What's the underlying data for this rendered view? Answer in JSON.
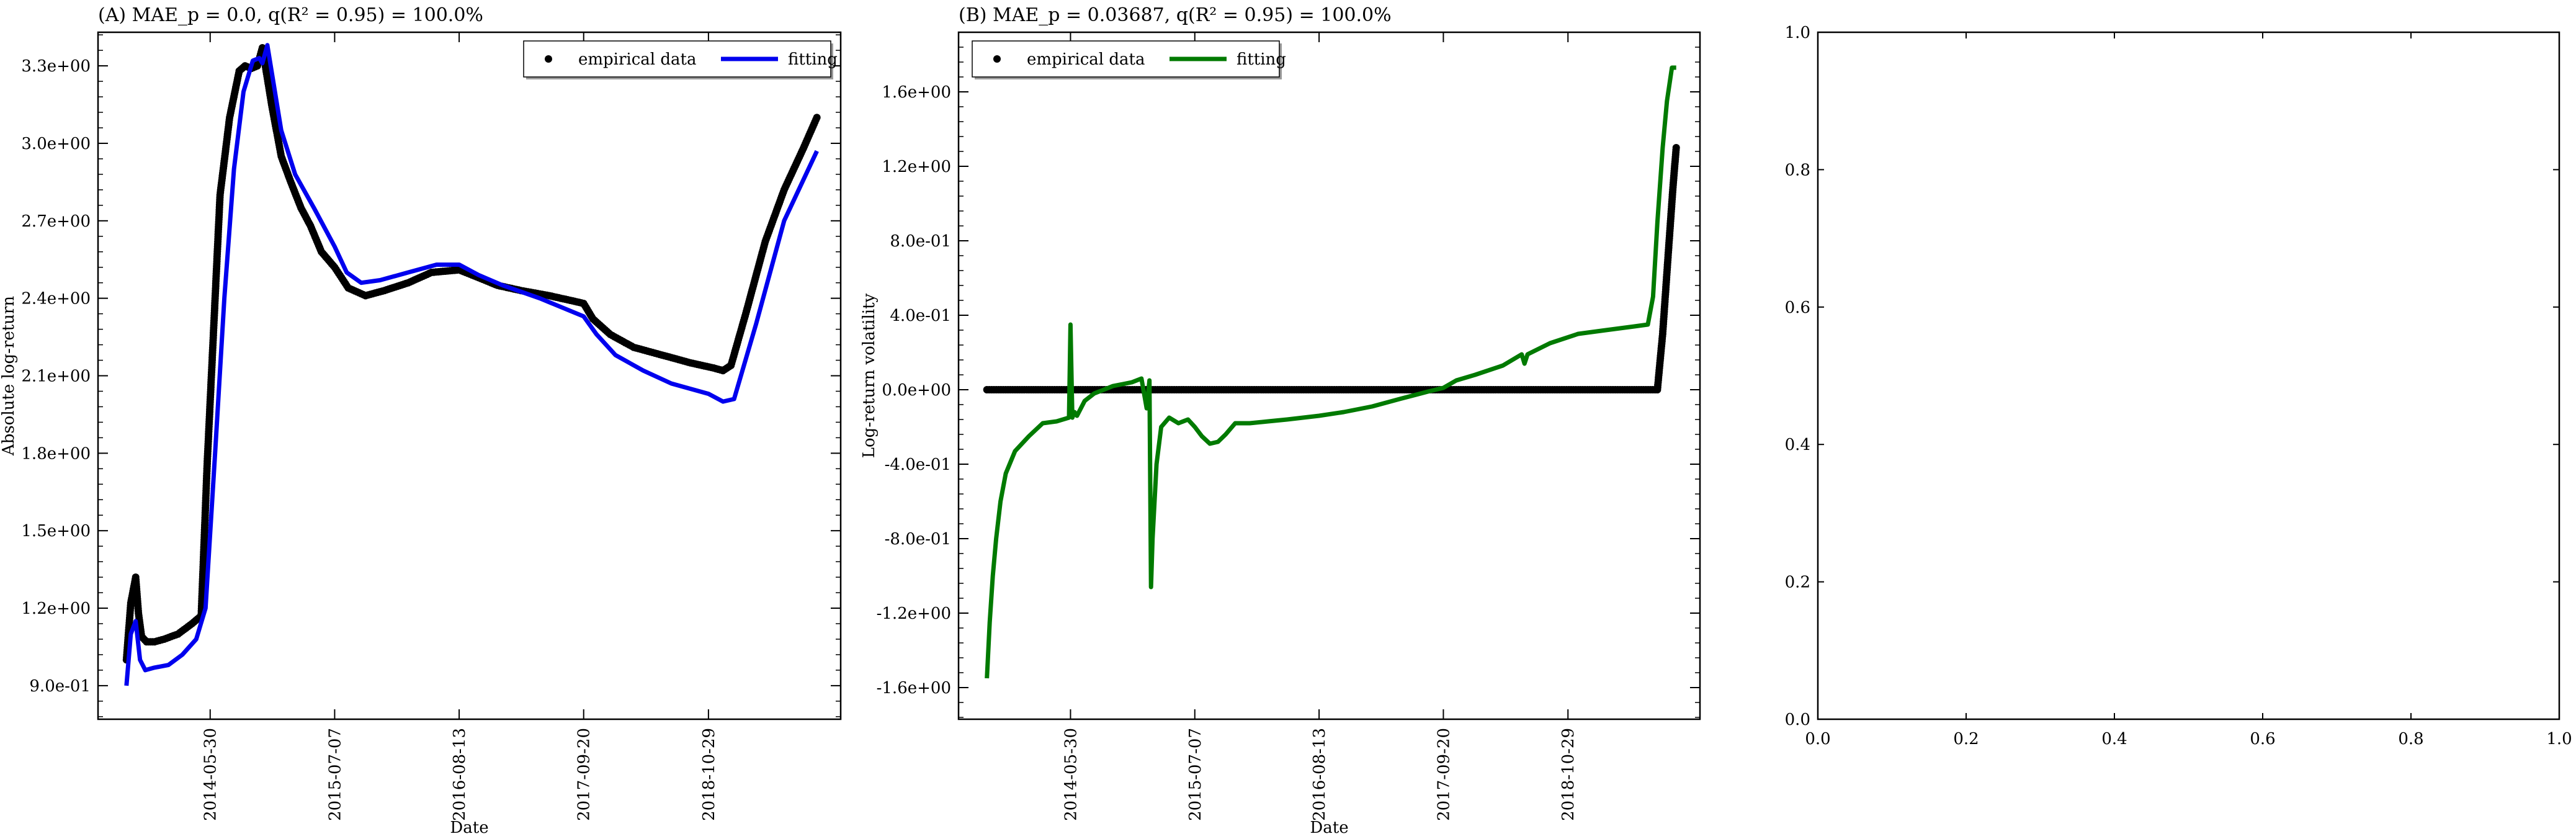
{
  "chart_data": [
    {
      "type": "line",
      "title": "(A) MAE_p = 0.0, q(R² = 0.95) = 100.0%",
      "xlabel": "Date",
      "ylabel": "Absolute log-return",
      "x_tick_labels": [
        "2014-05-30",
        "2015-07-07",
        "2016-08-13",
        "2017-09-20",
        "2018-10-29"
      ],
      "x_ticks": [
        "2014-05-30",
        "2015-07-07",
        "2016-08-13",
        "2017-09-20",
        "2018-10-29"
      ],
      "xlim": [
        "2013-06-01",
        "2019-12-31"
      ],
      "y_tick_labels": [
        "9.0e-01",
        "1.2e+00",
        "1.5e+00",
        "1.8e+00",
        "2.1e+00",
        "2.4e+00",
        "2.7e+00",
        "3.0e+00",
        "3.3e+00"
      ],
      "y_ticks": [
        0.9,
        1.2,
        1.5,
        1.8,
        2.1,
        2.4,
        2.7,
        3.0,
        3.3
      ],
      "ylim": [
        0.77,
        3.43
      ],
      "legend": "top-right",
      "series": [
        {
          "name": "empirical data",
          "style": "points",
          "color": "#000000",
          "x": [
            "2013-09-01",
            "2013-09-15",
            "2013-10-01",
            "2013-10-10",
            "2013-10-20",
            "2013-11-05",
            "2013-12-01",
            "2014-01-01",
            "2014-02-15",
            "2014-04-01",
            "2014-05-01",
            "2014-05-20",
            "2014-06-15",
            "2014-07-01",
            "2014-08-01",
            "2014-09-01",
            "2014-09-20",
            "2014-10-10",
            "2014-10-30",
            "2014-11-15",
            "2014-12-15",
            "2015-01-15",
            "2015-02-15",
            "2015-03-20",
            "2015-04-20",
            "2015-05-25",
            "2015-07-07",
            "2015-08-20",
            "2015-10-15",
            "2015-12-15",
            "2016-03-01",
            "2016-05-15",
            "2016-08-13",
            "2016-10-15",
            "2016-12-15",
            "2017-03-01",
            "2017-06-01",
            "2017-08-15",
            "2017-09-20",
            "2017-10-20",
            "2017-12-15",
            "2018-03-01",
            "2018-06-01",
            "2018-09-01",
            "2018-11-15",
            "2018-12-15",
            "2019-01-10",
            "2019-03-01",
            "2019-05-01",
            "2019-07-01",
            "2019-09-01",
            "2019-10-15"
          ],
          "y": [
            1.0,
            1.22,
            1.32,
            1.18,
            1.09,
            1.07,
            1.07,
            1.08,
            1.1,
            1.14,
            1.17,
            1.75,
            2.4,
            2.8,
            3.1,
            3.28,
            3.3,
            3.29,
            3.3,
            3.37,
            3.15,
            2.95,
            2.85,
            2.75,
            2.68,
            2.58,
            2.52,
            2.44,
            2.41,
            2.43,
            2.46,
            2.5,
            2.51,
            2.48,
            2.45,
            2.43,
            2.41,
            2.39,
            2.38,
            2.32,
            2.26,
            2.21,
            2.18,
            2.15,
            2.13,
            2.12,
            2.14,
            2.35,
            2.62,
            2.82,
            2.98,
            3.1
          ]
        },
        {
          "name": "fitting",
          "style": "line",
          "color": "#0000ee",
          "x": [
            "2013-09-01",
            "2013-09-15",
            "2013-10-01",
            "2013-10-15",
            "2013-11-01",
            "2013-12-01",
            "2014-01-15",
            "2014-03-01",
            "2014-04-15",
            "2014-05-15",
            "2014-06-15",
            "2014-07-15",
            "2014-08-15",
            "2014-09-15",
            "2014-10-15",
            "2014-11-05",
            "2014-11-15",
            "2014-12-01",
            "2015-01-15",
            "2015-03-01",
            "2015-05-01",
            "2015-07-07",
            "2015-08-15",
            "2015-10-01",
            "2015-12-01",
            "2016-03-01",
            "2016-06-01",
            "2016-08-13",
            "2016-10-15",
            "2017-01-01",
            "2017-05-01",
            "2017-09-20",
            "2017-11-01",
            "2018-01-01",
            "2018-04-01",
            "2018-07-01",
            "2018-10-29",
            "2018-12-15",
            "2019-01-20",
            "2019-04-01",
            "2019-07-01",
            "2019-10-15"
          ],
          "y": [
            0.9,
            1.1,
            1.15,
            1.0,
            0.96,
            0.97,
            0.98,
            1.02,
            1.08,
            1.2,
            1.8,
            2.4,
            2.9,
            3.2,
            3.32,
            3.33,
            3.31,
            3.38,
            3.05,
            2.88,
            2.75,
            2.6,
            2.5,
            2.46,
            2.47,
            2.5,
            2.53,
            2.53,
            2.49,
            2.45,
            2.4,
            2.33,
            2.26,
            2.18,
            2.12,
            2.07,
            2.03,
            2.0,
            2.01,
            2.3,
            2.7,
            2.97
          ]
        }
      ]
    },
    {
      "type": "line",
      "title": "(B) MAE_p = 0.03687, q(R² = 0.95) = 100.0%",
      "xlabel": "Date",
      "ylabel": "Log-return volatility",
      "x_tick_labels": [
        "2014-05-30",
        "2015-07-07",
        "2016-08-13",
        "2017-09-20",
        "2018-10-29"
      ],
      "x_ticks": [
        "2014-05-30",
        "2015-07-07",
        "2016-08-13",
        "2017-09-20",
        "2018-10-29"
      ],
      "xlim": [
        "2013-06-01",
        "2019-12-31"
      ],
      "y_tick_labels": [
        "-1.6e+00",
        "-1.2e+00",
        "-8.0e-01",
        "-4.0e-01",
        "0.0e+00",
        "4.0e-01",
        "8.0e-01",
        "1.2e+00",
        "1.6e+00"
      ],
      "y_ticks": [
        -1.6,
        -1.2,
        -0.8,
        -0.4,
        0.0,
        0.4,
        0.8,
        1.2,
        1.6
      ],
      "ylim": [
        -1.77,
        1.92
      ],
      "legend": "top-left",
      "series": [
        {
          "name": "empirical data",
          "style": "points",
          "color": "#000000",
          "x": [
            "2013-09-01",
            "2013-12-01",
            "2014-03-01",
            "2014-06-01",
            "2014-09-01",
            "2014-12-01",
            "2015-03-01",
            "2015-06-01",
            "2015-09-01",
            "2015-12-01",
            "2016-03-01",
            "2016-06-01",
            "2016-09-01",
            "2016-12-01",
            "2017-03-01",
            "2017-06-01",
            "2017-09-01",
            "2017-12-01",
            "2018-03-01",
            "2018-06-01",
            "2018-09-01",
            "2018-12-01",
            "2019-03-01",
            "2019-06-01",
            "2019-08-15",
            "2019-09-01",
            "2019-09-20",
            "2019-10-05",
            "2019-10-15"
          ],
          "y": [
            0,
            0,
            0,
            0,
            0,
            0,
            0,
            0,
            0,
            0,
            0,
            0,
            0,
            0,
            0,
            0,
            0,
            0,
            0,
            0,
            0,
            0,
            0,
            0,
            0,
            0.3,
            0.75,
            1.1,
            1.3
          ]
        },
        {
          "name": "fitting",
          "style": "line",
          "color": "#007a00",
          "x": [
            "2013-09-01",
            "2013-09-10",
            "2013-09-20",
            "2013-10-01",
            "2013-10-15",
            "2013-11-01",
            "2013-12-01",
            "2014-01-15",
            "2014-03-01",
            "2014-04-15",
            "2014-05-25",
            "2014-05-30",
            "2014-06-05",
            "2014-06-12",
            "2014-06-20",
            "2014-07-15",
            "2014-08-15",
            "2014-09-15",
            "2014-10-15",
            "2014-11-15",
            "2014-12-15",
            "2015-01-15",
            "2015-02-01",
            "2015-02-10",
            "2015-02-15",
            "2015-02-20",
            "2015-03-05",
            "2015-03-20",
            "2015-04-15",
            "2015-05-15",
            "2015-06-15",
            "2015-07-07",
            "2015-07-30",
            "2015-08-25",
            "2015-09-20",
            "2015-10-15",
            "2015-11-15",
            "2016-01-01",
            "2016-03-01",
            "2016-05-01",
            "2016-08-13",
            "2016-11-01",
            "2017-02-01",
            "2017-05-01",
            "2017-08-01",
            "2017-09-20",
            "2017-11-01",
            "2018-01-01",
            "2018-04-01",
            "2018-06-01",
            "2018-06-10",
            "2018-06-20",
            "2018-09-01",
            "2018-12-01",
            "2019-03-01",
            "2019-06-01",
            "2019-07-15",
            "2019-08-01",
            "2019-08-15",
            "2019-09-01",
            "2019-09-15",
            "2019-10-01",
            "2019-10-15"
          ],
          "y": [
            -1.55,
            -1.25,
            -1.0,
            -0.8,
            -0.6,
            -0.45,
            -0.33,
            -0.25,
            -0.18,
            -0.17,
            -0.15,
            0.35,
            -0.15,
            -0.12,
            -0.14,
            -0.06,
            -0.02,
            0.0,
            0.02,
            0.03,
            0.04,
            0.06,
            -0.1,
            0.05,
            -1.06,
            -0.8,
            -0.4,
            -0.2,
            -0.15,
            -0.18,
            -0.16,
            -0.2,
            -0.25,
            -0.29,
            -0.28,
            -0.24,
            -0.18,
            -0.18,
            -0.17,
            -0.16,
            -0.14,
            -0.12,
            -0.09,
            -0.05,
            -0.01,
            0.01,
            0.05,
            0.08,
            0.13,
            0.19,
            0.14,
            0.19,
            0.25,
            0.3,
            0.32,
            0.34,
            0.35,
            0.5,
            0.9,
            1.3,
            1.55,
            1.73,
            1.73
          ]
        }
      ]
    },
    {
      "type": "line",
      "title": "",
      "xlabel": "",
      "ylabel": "",
      "x_tick_labels": [
        "0.0",
        "0.2",
        "0.4",
        "0.6",
        "0.8",
        "1.0"
      ],
      "x_ticks": [
        0.0,
        0.2,
        0.4,
        0.6,
        0.8,
        1.0
      ],
      "xlim": [
        0,
        1
      ],
      "y_tick_labels": [
        "0.0",
        "0.2",
        "0.4",
        "0.6",
        "0.8",
        "1.0"
      ],
      "y_ticks": [
        0.0,
        0.2,
        0.4,
        0.6,
        0.8,
        1.0
      ],
      "ylim": [
        0,
        1
      ],
      "series": []
    }
  ]
}
